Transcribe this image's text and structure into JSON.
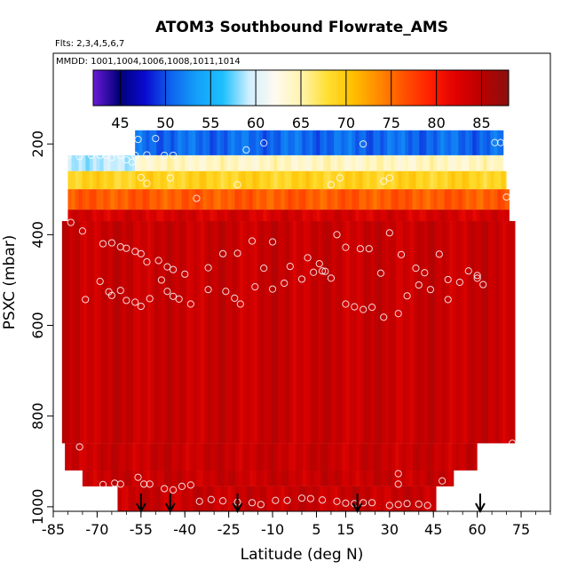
{
  "chart_data": {
    "type": "heatmap",
    "title": "ATOM3 Southbound Flowrate_AMS",
    "flights_label": "Flts: 2,3,4,5,6,7",
    "dates_label": "MMDD: 1001,1004,1006,1008,1011,1014",
    "xlabel": "Latitude (deg N)",
    "ylabel": "PSXC (mbar)",
    "xlim": [
      -85,
      85
    ],
    "ylim": [
      1010,
      0
    ],
    "x_ticks": [
      -85,
      -70,
      -55,
      -40,
      -25,
      -10,
      5,
      15,
      30,
      45,
      60,
      75
    ],
    "y_ticks": [
      200,
      400,
      600,
      800,
      1000
    ],
    "colorbar": {
      "min": 42,
      "max": 88,
      "ticks": [
        45,
        50,
        55,
        60,
        65,
        70,
        75,
        80,
        85
      ],
      "colors": [
        "#6a1ad6",
        "#00007a",
        "#0a0ad0",
        "#0f64ee",
        "#14a0fa",
        "#1ec0ff",
        "#cfefff",
        "#fffaf0",
        "#fff4b0",
        "#ffe033",
        "#ffc000",
        "#ff8a00",
        "#ff5000",
        "#ff1e00",
        "#e00000",
        "#b80000",
        "#8b1010"
      ]
    },
    "rows": [
      {
        "p": [
          170,
          225
        ],
        "lat": [
          -57,
          69
        ],
        "value": 51
      },
      {
        "p": [
          225,
          260
        ],
        "lat": [
          -80,
          -57
        ],
        "value": 59
      },
      {
        "p": [
          225,
          260
        ],
        "lat": [
          -57,
          69
        ],
        "value": 64
      },
      {
        "p": [
          260,
          300
        ],
        "lat": [
          -80,
          70
        ],
        "value": 69
      },
      {
        "p": [
          300,
          345
        ],
        "lat": [
          -80,
          71
        ],
        "value": 76
      },
      {
        "p": [
          345,
          370
        ],
        "lat": [
          -80,
          71
        ],
        "value": 83
      },
      {
        "p": [
          370,
          860
        ],
        "lat": [
          -82,
          73
        ],
        "value": 84
      },
      {
        "p": [
          860,
          920
        ],
        "lat": [
          -81,
          60
        ],
        "value": 84
      },
      {
        "p": [
          920,
          955
        ],
        "lat": [
          -75,
          52
        ],
        "value": 84
      },
      {
        "p": [
          955,
          1010
        ],
        "lat": [
          -63,
          46
        ],
        "value": 84
      }
    ],
    "samples": [
      [
        -57,
        225
      ],
      [
        -56,
        190
      ],
      [
        -53,
        224
      ],
      [
        -50,
        188
      ],
      [
        -47,
        225
      ],
      [
        -44,
        225
      ],
      [
        -80,
        225
      ],
      [
        -76,
        228
      ],
      [
        -72,
        225
      ],
      [
        -69,
        225
      ],
      [
        -67,
        225
      ],
      [
        -65,
        230
      ],
      [
        -62,
        225
      ],
      [
        -60,
        235
      ],
      [
        -58,
        240
      ],
      [
        -13,
        198
      ],
      [
        -19,
        213
      ],
      [
        21,
        200
      ],
      [
        66,
        197
      ],
      [
        68,
        197
      ],
      [
        70,
        197
      ],
      [
        -22,
        290
      ],
      [
        -36,
        320
      ],
      [
        -55,
        274
      ],
      [
        -53,
        287
      ],
      [
        -45,
        275
      ],
      [
        10,
        290
      ],
      [
        30,
        275
      ],
      [
        28,
        282
      ],
      [
        13,
        275
      ],
      [
        -79,
        373
      ],
      [
        -75,
        392
      ],
      [
        -68,
        420
      ],
      [
        -65,
        418
      ],
      [
        -62,
        427
      ],
      [
        -60,
        430
      ],
      [
        -57,
        437
      ],
      [
        -55,
        442
      ],
      [
        -53,
        460
      ],
      [
        -49,
        457
      ],
      [
        -46,
        471
      ],
      [
        -44,
        477
      ],
      [
        -40,
        487
      ],
      [
        -32,
        473
      ],
      [
        -27,
        442
      ],
      [
        -22,
        441
      ],
      [
        -17,
        414
      ],
      [
        -13,
        474
      ],
      [
        -10,
        416
      ],
      [
        -4,
        470
      ],
      [
        2,
        451
      ],
      [
        6,
        464
      ],
      [
        8,
        481
      ],
      [
        12,
        400
      ],
      [
        15,
        428
      ],
      [
        20,
        431
      ],
      [
        23,
        431
      ],
      [
        27,
        485
      ],
      [
        30,
        396
      ],
      [
        34,
        444
      ],
      [
        39,
        474
      ],
      [
        42,
        484
      ],
      [
        47,
        443
      ],
      [
        50,
        499
      ],
      [
        57,
        480
      ],
      [
        60,
        496
      ],
      [
        70,
        317
      ],
      [
        -74,
        543
      ],
      [
        -69,
        503
      ],
      [
        -66,
        526
      ],
      [
        -65,
        534
      ],
      [
        -62,
        523
      ],
      [
        -60,
        545
      ],
      [
        -57,
        549
      ],
      [
        -55,
        558
      ],
      [
        -52,
        541
      ],
      [
        -48,
        500
      ],
      [
        -46,
        525
      ],
      [
        -44,
        536
      ],
      [
        -42,
        542
      ],
      [
        -38,
        553
      ],
      [
        -32,
        521
      ],
      [
        -26,
        525
      ],
      [
        -23,
        540
      ],
      [
        -21,
        553
      ],
      [
        -16,
        515
      ],
      [
        -10,
        520
      ],
      [
        -6,
        507
      ],
      [
        0,
        498
      ],
      [
        4,
        483
      ],
      [
        7,
        480
      ],
      [
        10,
        496
      ],
      [
        15,
        553
      ],
      [
        18,
        559
      ],
      [
        21,
        565
      ],
      [
        24,
        560
      ],
      [
        28,
        582
      ],
      [
        33,
        574
      ],
      [
        36,
        535
      ],
      [
        40,
        511
      ],
      [
        44,
        521
      ],
      [
        50,
        543
      ],
      [
        54,
        505
      ],
      [
        60,
        490
      ],
      [
        62,
        510
      ],
      [
        -76,
        868
      ],
      [
        -72,
        980
      ],
      [
        -68,
        951
      ],
      [
        -64,
        948
      ],
      [
        -62,
        950
      ],
      [
        -56,
        935
      ],
      [
        -54,
        950
      ],
      [
        -52,
        950
      ],
      [
        -47,
        960
      ],
      [
        -44,
        963
      ],
      [
        -41,
        955
      ],
      [
        -38,
        952
      ],
      [
        -35,
        988
      ],
      [
        -31,
        984
      ],
      [
        -27,
        987
      ],
      [
        -22,
        990
      ],
      [
        -17,
        991
      ],
      [
        -14,
        995
      ],
      [
        -9,
        986
      ],
      [
        -5,
        986
      ],
      [
        0,
        981
      ],
      [
        3,
        982
      ],
      [
        7,
        985
      ],
      [
        12,
        988
      ],
      [
        15,
        992
      ],
      [
        18,
        993
      ],
      [
        21,
        991
      ],
      [
        24,
        991
      ],
      [
        30,
        997
      ],
      [
        33,
        995
      ],
      [
        36,
        993
      ],
      [
        40,
        994
      ],
      [
        43,
        997
      ],
      [
        48,
        999
      ],
      [
        33,
        927
      ],
      [
        33,
        950
      ],
      [
        48,
        943
      ],
      [
        72,
        860
      ]
    ],
    "flight_arrows": [
      -55,
      -45,
      -22,
      19,
      61
    ]
  }
}
